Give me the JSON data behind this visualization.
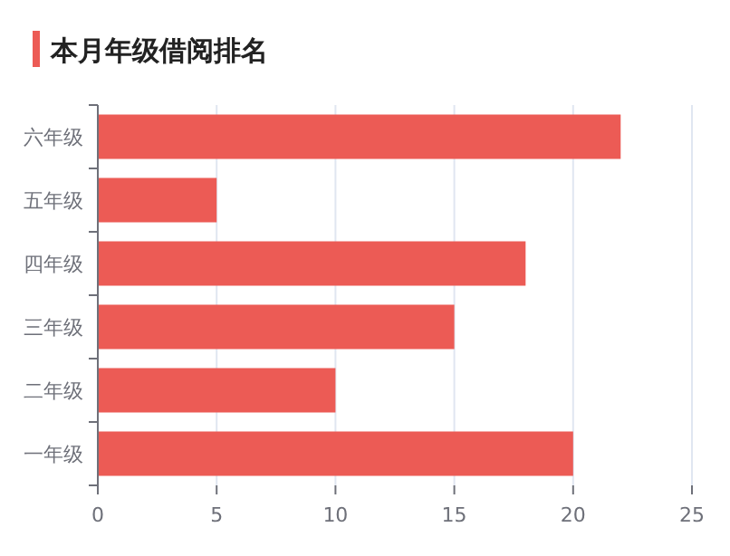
{
  "chart_data": {
    "type": "bar",
    "orientation": "horizontal",
    "title": "本月年级借阅排名",
    "categories": [
      "六年级",
      "五年级",
      "四年级",
      "三年级",
      "二年级",
      "一年级"
    ],
    "values": [
      22,
      5,
      18,
      15,
      10,
      20
    ],
    "color": "#ec5b55",
    "xlim": [
      0,
      25
    ],
    "xticks": [
      0,
      5,
      10,
      15,
      20,
      25
    ],
    "grid": "x"
  }
}
